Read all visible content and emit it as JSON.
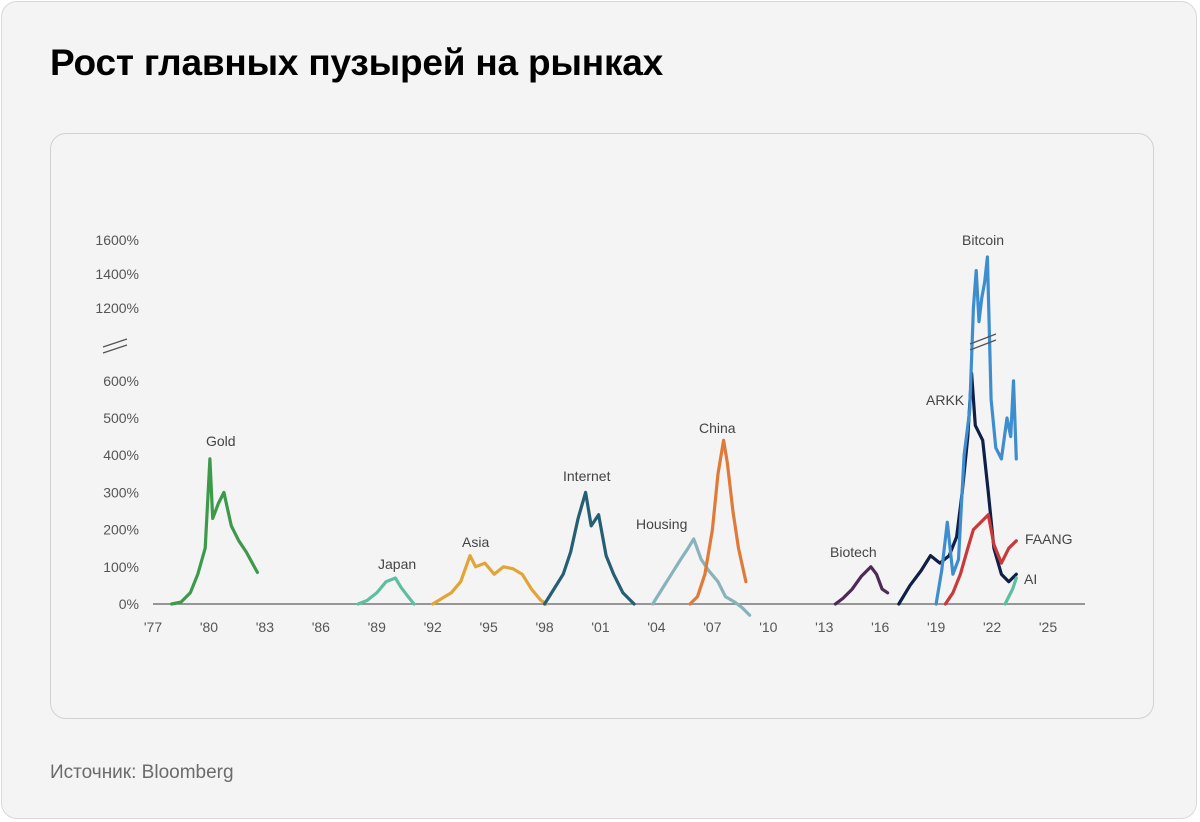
{
  "title": "Рост главных пузырей на рынках",
  "source": "Источник: Bloomberg",
  "chart_data": {
    "type": "line",
    "ytick_labels": [
      "0%",
      "100%",
      "200%",
      "300%",
      "400%",
      "500%",
      "600%",
      "1200%",
      "1400%",
      "1600%"
    ],
    "xtick_labels": [
      "'77",
      "'80",
      "'83",
      "'86",
      "'89",
      "'92",
      "'95",
      "'98",
      "'01",
      "'04",
      "'07",
      "'10",
      "'13",
      "'16",
      "'19",
      "'22",
      "'25"
    ],
    "axis_break": true,
    "grid": false,
    "series": [
      {
        "name": "Gold",
        "color": "#3d9a4a",
        "x": [
          1978.0,
          1978.5,
          1979.0,
          1979.4,
          1979.8,
          1980.05,
          1980.2,
          1980.5,
          1980.8,
          1981.2,
          1981.6,
          1982.0,
          1982.6
        ],
        "y": [
          0,
          5,
          30,
          80,
          150,
          390,
          230,
          270,
          300,
          210,
          170,
          140,
          85
        ]
      },
      {
        "name": "Japan",
        "color": "#5cbfa2",
        "x": [
          1988.0,
          1988.5,
          1989.0,
          1989.5,
          1990.0,
          1990.3,
          1990.6,
          1991.0
        ],
        "y": [
          0,
          10,
          30,
          60,
          70,
          45,
          25,
          0
        ]
      },
      {
        "name": "Asia",
        "color": "#e2a535",
        "x": [
          1992.0,
          1992.5,
          1993.0,
          1993.5,
          1994.0,
          1994.3,
          1994.8,
          1995.3,
          1995.8,
          1996.3,
          1996.8,
          1997.3,
          1997.8,
          1998.1
        ],
        "y": [
          0,
          15,
          30,
          60,
          130,
          100,
          110,
          80,
          100,
          95,
          80,
          40,
          10,
          0
        ]
      },
      {
        "name": "Internet",
        "color": "#245f73",
        "x": [
          1998.0,
          1998.5,
          1999.0,
          1999.4,
          1999.8,
          2000.2,
          2000.5,
          2000.9,
          2001.3,
          2001.7,
          2002.2,
          2002.8
        ],
        "y": [
          0,
          40,
          80,
          140,
          230,
          300,
          210,
          240,
          130,
          80,
          30,
          0
        ]
      },
      {
        "name": "Housing",
        "color": "#88b3bc",
        "x": [
          2003.8,
          2004.3,
          2004.8,
          2005.3,
          2005.7,
          2006.0,
          2006.4,
          2006.8,
          2007.3,
          2007.7,
          2008.2,
          2008.6,
          2009.0
        ],
        "y": [
          0,
          40,
          80,
          120,
          150,
          175,
          120,
          90,
          60,
          20,
          5,
          -10,
          -30
        ]
      },
      {
        "name": "China",
        "color": "#e07a38",
        "x": [
          2005.8,
          2006.2,
          2006.6,
          2007.0,
          2007.3,
          2007.6,
          2007.8,
          2008.1,
          2008.4,
          2008.8
        ],
        "y": [
          0,
          20,
          80,
          200,
          350,
          440,
          380,
          250,
          150,
          60
        ]
      },
      {
        "name": "Biotech",
        "color": "#4e2a57",
        "x": [
          2013.6,
          2014.0,
          2014.5,
          2015.0,
          2015.5,
          2015.8,
          2016.1,
          2016.4
        ],
        "y": [
          0,
          15,
          40,
          75,
          100,
          80,
          40,
          30
        ]
      },
      {
        "name": "ARKK",
        "color": "#0f1f47",
        "x": [
          2017.0,
          2017.6,
          2018.2,
          2018.7,
          2019.2,
          2019.7,
          2020.1,
          2020.4,
          2020.7,
          2020.9,
          2021.1,
          2021.5,
          2021.8,
          2022.1,
          2022.5,
          2022.9,
          2023.3
        ],
        "y": [
          0,
          50,
          90,
          130,
          110,
          130,
          180,
          300,
          450,
          620,
          480,
          440,
          300,
          150,
          80,
          60,
          80
        ]
      },
      {
        "name": "FAANG",
        "color": "#c83a3a",
        "x": [
          2019.5,
          2019.9,
          2020.3,
          2020.7,
          2021.0,
          2021.4,
          2021.8,
          2022.1,
          2022.5,
          2022.9,
          2023.3
        ],
        "y": [
          0,
          30,
          80,
          150,
          200,
          220,
          240,
          160,
          110,
          150,
          170
        ]
      },
      {
        "name": "Bitcoin",
        "color": "#3e8ecf",
        "x": [
          2019.0,
          2019.3,
          2019.6,
          2019.9,
          2020.2,
          2020.5,
          2020.8,
          2021.0,
          2021.15,
          2021.3,
          2021.45,
          2021.6,
          2021.75,
          2021.95,
          2022.2,
          2022.5,
          2022.8,
          2023.0,
          2023.15,
          2023.3
        ],
        "y": [
          0,
          90,
          220,
          80,
          120,
          400,
          520,
          1200,
          1420,
          1120,
          1260,
          1350,
          1500,
          550,
          420,
          390,
          500,
          450,
          600,
          390
        ]
      },
      {
        "name": "AI",
        "color": "#5cbfa2",
        "x": [
          2022.7,
          2022.9,
          2023.1,
          2023.3
        ],
        "y": [
          0,
          20,
          40,
          70
        ]
      }
    ]
  },
  "series_labels": {
    "Gold": "Gold",
    "Japan": "Japan",
    "Asia": "Asia",
    "Internet": "Internet",
    "Housing": "Housing",
    "China": "China",
    "Biotech": "Biotech",
    "ARKK": "ARKK",
    "FAANG": "FAANG",
    "Bitcoin": "Bitcoin",
    "AI": "AI"
  }
}
